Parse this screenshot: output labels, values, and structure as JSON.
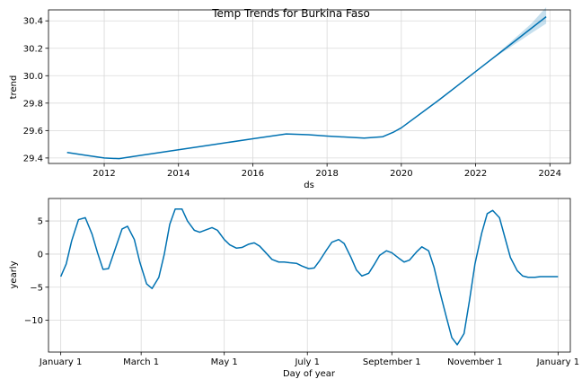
{
  "chart_data": [
    {
      "type": "line",
      "title": "Temp Trends for Burkina Faso",
      "xlabel": "ds",
      "ylabel": "trend",
      "xlim": [
        2010.5,
        2024.55
      ],
      "ylim": [
        29.36,
        30.48
      ],
      "xticks": [
        2012,
        2014,
        2016,
        2018,
        2020,
        2022,
        2024
      ],
      "xtick_labels": [
        "2012",
        "2014",
        "2016",
        "2018",
        "2020",
        "2022",
        "2024"
      ],
      "yticks": [
        29.4,
        29.6,
        29.8,
        30.0,
        30.2,
        30.4
      ],
      "ytick_labels": [
        "29.4",
        "29.6",
        "29.8",
        "30.0",
        "30.2",
        "30.4"
      ],
      "grid": true,
      "line_color": "#0072B2",
      "band_color": "#0072B2",
      "series": [
        {
          "x": [
            2011.0,
            2011.5,
            2012.0,
            2012.4,
            2013.0,
            2014.0,
            2015.0,
            2016.0,
            2016.9,
            2017.5,
            2018.0,
            2019.0,
            2019.5,
            2019.8,
            2020.0,
            2021.0,
            2022.0,
            2023.0,
            2023.9
          ],
          "y": [
            29.44,
            29.42,
            29.4,
            29.395,
            29.42,
            29.46,
            29.5,
            29.54,
            29.575,
            29.57,
            29.56,
            29.545,
            29.555,
            29.59,
            29.62,
            29.82,
            30.03,
            30.24,
            30.43
          ]
        }
      ],
      "uncertainty": {
        "x": [
          2022.5,
          2023.0,
          2023.5,
          2023.9
        ],
        "upper": [
          30.14,
          30.26,
          30.38,
          30.5
        ],
        "lower": [
          30.13,
          30.22,
          30.31,
          30.38
        ]
      }
    },
    {
      "type": "line",
      "title": "",
      "xlabel": "Day of year",
      "ylabel": "yearly",
      "xlim": [
        -9,
        374
      ],
      "ylim": [
        -14.8,
        8.4
      ],
      "xticks": [
        0,
        59,
        120,
        181,
        243,
        304,
        365
      ],
      "xtick_labels": [
        "January 1",
        "March 1",
        "May 1",
        "July 1",
        "September 1",
        "November 1",
        "January 1"
      ],
      "yticks": [
        5,
        0,
        -5,
        -10
      ],
      "ytick_labels": [
        "5",
        "0",
        "−5",
        "−10"
      ],
      "grid": true,
      "line_color": "#0072B2",
      "series": [
        {
          "x": [
            0,
            4,
            8,
            13,
            18,
            23,
            27,
            31,
            35,
            40,
            45,
            49,
            54,
            58,
            63,
            67,
            72,
            76,
            80,
            84,
            89,
            93,
            98,
            102,
            107,
            111,
            115,
            120,
            124,
            129,
            133,
            138,
            142,
            146,
            151,
            155,
            160,
            164,
            168,
            173,
            177,
            182,
            186,
            190,
            195,
            199,
            204,
            208,
            213,
            217,
            221,
            226,
            230,
            234,
            239,
            243,
            248,
            252,
            256,
            261,
            265,
            270,
            274,
            278,
            283,
            287,
            291,
            296,
            300,
            304,
            309,
            313,
            317,
            322,
            326,
            330,
            335,
            339,
            343,
            348,
            352,
            356,
            361,
            365
          ],
          "y": [
            -3.4,
            -1.5,
            2.0,
            5.2,
            5.5,
            3.0,
            0.2,
            -2.3,
            -2.2,
            0.8,
            3.8,
            4.2,
            2.2,
            -1.2,
            -4.5,
            -5.2,
            -3.5,
            0.0,
            4.5,
            6.8,
            6.8,
            5.0,
            3.6,
            3.3,
            3.7,
            4.0,
            3.6,
            2.2,
            1.4,
            0.9,
            1.0,
            1.5,
            1.7,
            1.2,
            0.1,
            -0.8,
            -1.2,
            -1.2,
            -1.3,
            -1.4,
            -1.8,
            -2.2,
            -2.1,
            -1.0,
            0.6,
            1.8,
            2.2,
            1.6,
            -0.5,
            -2.4,
            -3.3,
            -2.9,
            -1.6,
            -0.2,
            0.5,
            0.2,
            -0.6,
            -1.2,
            -0.9,
            0.3,
            1.1,
            0.5,
            -2.0,
            -5.5,
            -9.5,
            -12.6,
            -13.7,
            -12.0,
            -7.0,
            -1.5,
            3.2,
            6.1,
            6.6,
            5.5,
            2.5,
            -0.5,
            -2.5,
            -3.3,
            -3.5,
            -3.5,
            -3.4,
            -3.4,
            -3.4,
            -3.4
          ]
        }
      ]
    }
  ]
}
